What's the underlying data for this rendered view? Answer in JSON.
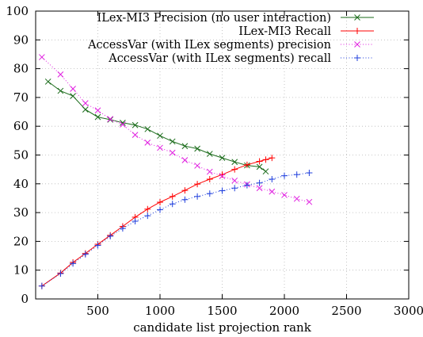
{
  "chart_data": {
    "type": "line",
    "xlabel": "candidate list projection rank",
    "ylabel": "",
    "xlim": [
      0,
      3000
    ],
    "ylim": [
      0,
      100
    ],
    "x_ticks": [
      500,
      1000,
      1500,
      2000,
      2500,
      3000
    ],
    "y_ticks": [
      0,
      10,
      20,
      30,
      40,
      50,
      60,
      70,
      80,
      90,
      100
    ],
    "grid": true,
    "legend_position": "top-right",
    "series": [
      {
        "name": "ILex-MI3 Precision (no user interaction)",
        "color": "#1a6b1a",
        "marker": "x",
        "line": "solid",
        "x": [
          100,
          200,
          300,
          400,
          500,
          600,
          700,
          800,
          900,
          1000,
          1100,
          1200,
          1300,
          1400,
          1500,
          1600,
          1700,
          1800,
          1850
        ],
        "y": [
          75.5,
          72.3,
          70.5,
          65.8,
          63.2,
          62.3,
          61.2,
          60.4,
          59.0,
          56.7,
          54.7,
          53.1,
          52.2,
          50.4,
          49.0,
          47.6,
          46.4,
          45.9,
          44.3
        ]
      },
      {
        "name": "ILex-MI3 Recall",
        "color": "#ff0000",
        "marker": "+",
        "line": "solid",
        "x": [
          50,
          200,
          300,
          400,
          500,
          600,
          700,
          800,
          900,
          1000,
          1100,
          1200,
          1300,
          1400,
          1500,
          1600,
          1700,
          1800,
          1850,
          1900
        ],
        "y": [
          4.5,
          9.0,
          12.7,
          15.8,
          19.0,
          22.1,
          25.2,
          28.4,
          31.2,
          33.6,
          35.6,
          37.7,
          39.9,
          41.6,
          43.2,
          45.0,
          46.6,
          47.8,
          48.4,
          49.0
        ]
      },
      {
        "name": "AccessVar (with ILex segments) precision",
        "color": "#e020e0",
        "marker": "x",
        "line": "dotted",
        "x": [
          50,
          200,
          300,
          400,
          500,
          600,
          700,
          800,
          900,
          1000,
          1100,
          1200,
          1300,
          1400,
          1500,
          1600,
          1700,
          1800,
          1900,
          2000,
          2100,
          2200
        ],
        "y": [
          84.0,
          78.0,
          73.0,
          68.0,
          65.5,
          62.5,
          60.6,
          57.0,
          54.3,
          52.5,
          50.8,
          48.2,
          46.3,
          44.2,
          42.7,
          41.1,
          39.8,
          38.5,
          37.3,
          36.1,
          34.8,
          33.7
        ]
      },
      {
        "name": "AccessVar (with ILex segments) recall",
        "color": "#1f3fdd",
        "marker": "+",
        "line": "dotted",
        "x": [
          50,
          200,
          300,
          400,
          500,
          600,
          700,
          800,
          900,
          1000,
          1100,
          1200,
          1300,
          1400,
          1500,
          1600,
          1700,
          1800,
          1900,
          2000,
          2100,
          2200
        ],
        "y": [
          4.5,
          8.8,
          12.3,
          15.5,
          18.6,
          21.8,
          24.5,
          27.0,
          28.9,
          31.0,
          33.0,
          34.5,
          35.6,
          36.6,
          37.6,
          38.5,
          39.5,
          40.3,
          41.6,
          42.8,
          43.2,
          43.8
        ]
      }
    ]
  }
}
